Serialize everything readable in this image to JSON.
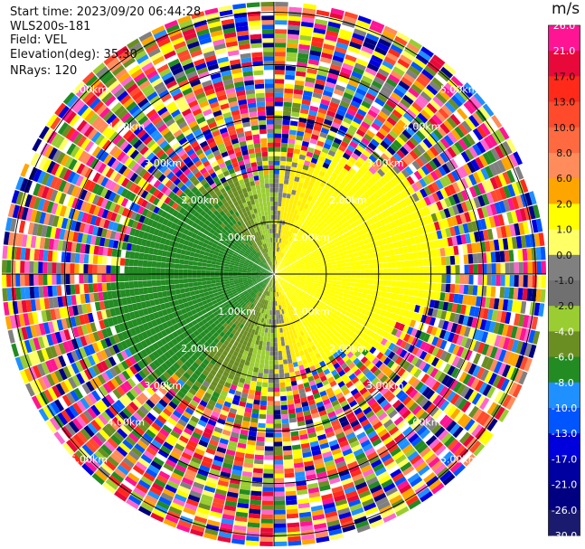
{
  "header": {
    "start_time": "Start time: 2023/09/20 06:44:28",
    "instrument": "WLS200s-181",
    "field": "Field: VEL",
    "elevation": "Elevation(deg): 35.30",
    "nrays": "NRays: 120"
  },
  "chart_data": {
    "type": "heatmap",
    "projection": "polar-ppi",
    "field": "VEL",
    "unit": "m/s",
    "n_rays": 120,
    "max_range_km": 5.2,
    "range_rings_km": [
      1.0,
      2.0,
      3.0,
      4.0,
      5.0
    ],
    "range_ring_labels": [
      "1.00km",
      "2.00km",
      "3.00km",
      "4.00km",
      "5.00km"
    ],
    "colorbar_ticks": [
      "26.0",
      "21.0",
      "17.0",
      "13.0",
      "10.0",
      "8.0",
      "6.0",
      "2.0",
      "1.0",
      "0.0",
      "-1.0",
      "-2.0",
      "-4.0",
      "-6.0",
      "-8.0",
      "-10.0",
      "-13.0",
      "-17.0",
      "-21.0",
      "-26.0",
      "-30.0"
    ],
    "colorbar_colors": [
      "#ff1493",
      "#e8093a",
      "#ff2a1a",
      "#ff4a2c",
      "#ff6a40",
      "#ff8c5a",
      "#ffa500",
      "#ffff00",
      "#ffff66",
      "#808080",
      "#707070",
      "#9acd32",
      "#6b8e23",
      "#228b22",
      "#1e90ff",
      "#0055ff",
      "#0000dd",
      "#0000a0",
      "#000080",
      "#1a1a6e"
    ],
    "wind_pattern": "near-range: negative (green) to the west, positive (yellow) to the east; far-range: noise"
  }
}
